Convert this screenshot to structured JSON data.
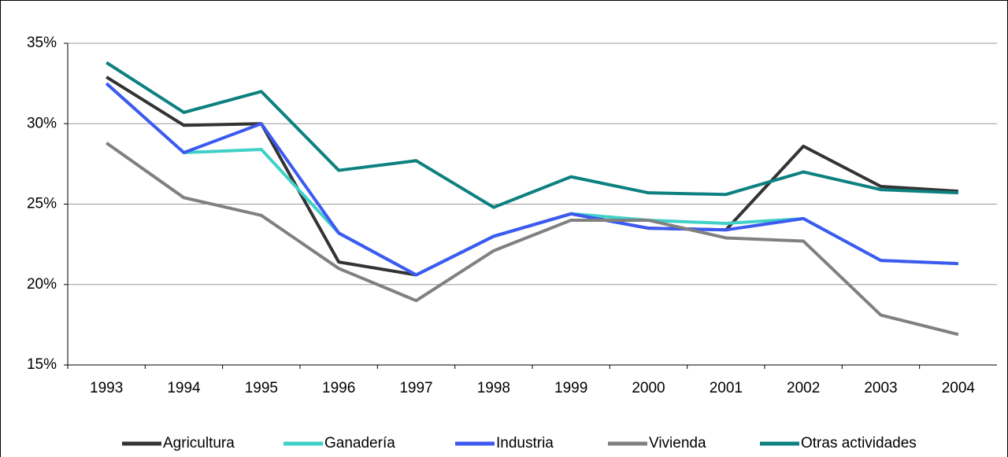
{
  "chart_data": {
    "type": "line",
    "categories": [
      "1993",
      "1994",
      "1995",
      "1996",
      "1997",
      "1998",
      "1999",
      "2000",
      "2001",
      "2002",
      "2003",
      "2004"
    ],
    "series": [
      {
        "name": "Agricultura",
        "color": "#333333",
        "values": [
          32.9,
          29.9,
          30.0,
          21.4,
          20.6,
          23.0,
          24.4,
          23.5,
          23.4,
          28.6,
          26.1,
          25.8
        ]
      },
      {
        "name": "Ganadería",
        "color": "#40d0c8",
        "values": [
          32.5,
          28.2,
          28.4,
          23.2,
          20.6,
          23.0,
          24.4,
          24.0,
          23.8,
          24.1,
          21.5,
          21.3
        ]
      },
      {
        "name": "Industria",
        "color": "#3d5af0",
        "values": [
          32.5,
          28.2,
          30.0,
          23.2,
          20.6,
          23.0,
          24.4,
          23.5,
          23.4,
          24.1,
          21.5,
          21.3
        ]
      },
      {
        "name": "Vivienda",
        "color": "#808080",
        "values": [
          28.8,
          25.4,
          24.3,
          21.0,
          19.0,
          22.1,
          24.0,
          24.0,
          22.9,
          22.7,
          18.1,
          16.9
        ]
      },
      {
        "name": "Otras actividades",
        "color": "#0d8080",
        "values": [
          33.8,
          30.7,
          32.0,
          27.1,
          27.7,
          24.8,
          26.7,
          25.7,
          25.6,
          27.0,
          25.9,
          25.7
        ]
      }
    ],
    "ylim": [
      15,
      35
    ],
    "yticks": [
      {
        "value": 15,
        "label": "15%"
      },
      {
        "value": 20,
        "label": "20%"
      },
      {
        "value": 25,
        "label": "25%"
      },
      {
        "value": 30,
        "label": "30%"
      },
      {
        "value": 35,
        "label": "35%"
      }
    ],
    "grid": true,
    "legend": "bottom"
  }
}
